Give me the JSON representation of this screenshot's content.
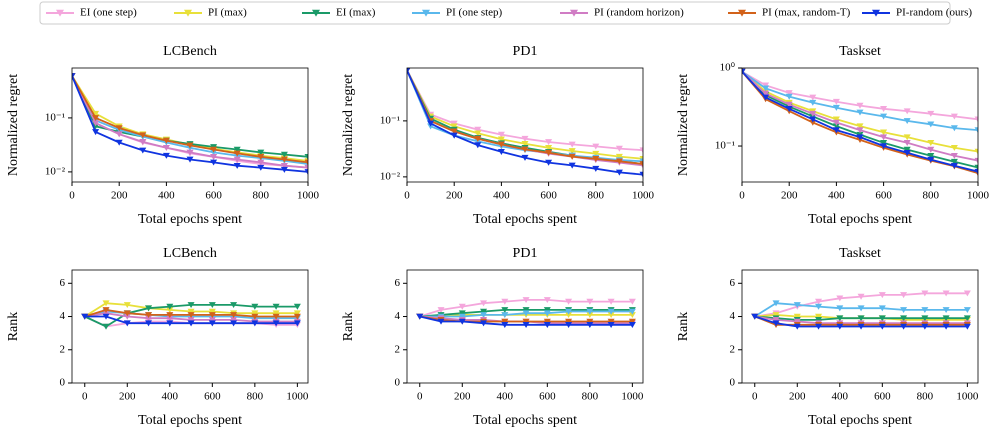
{
  "legend": [
    {
      "name": "EI (one step)",
      "color": "#f4a6dc"
    },
    {
      "name": "PI (max)",
      "color": "#e8e03a"
    },
    {
      "name": "EI (max)",
      "color": "#1a9a68"
    },
    {
      "name": "PI (one step)",
      "color": "#5ab8ec"
    },
    {
      "name": "PI (random horizon)",
      "color": "#d07cc4"
    },
    {
      "name": "PI (max, random-T)",
      "color": "#d2621a"
    },
    {
      "name": "PI-random (ours)",
      "color": "#1034e0"
    }
  ],
  "chart_data": [
    {
      "type": "line",
      "title": "LCBench",
      "xlabel": "Total epochs spent",
      "ylabel": "Normalized regret",
      "log_y": true,
      "x": [
        0,
        100,
        200,
        300,
        400,
        500,
        600,
        700,
        800,
        900,
        1000
      ],
      "xlim": [
        0,
        1000
      ],
      "xticks": [
        0,
        200,
        400,
        600,
        800,
        1000
      ],
      "ylim": [
        0.0065,
        0.84
      ],
      "yticks": [
        {
          "value": 0.01,
          "label": "10⁻²"
        },
        {
          "value": 0.1,
          "label": "10⁻¹"
        }
      ],
      "series": [
        {
          "values": [
            0.6,
            0.08,
            0.05,
            0.035,
            0.028,
            0.022,
            0.019,
            0.016,
            0.014,
            0.013,
            0.012
          ]
        },
        {
          "values": [
            0.6,
            0.12,
            0.07,
            0.05,
            0.04,
            0.032,
            0.027,
            0.023,
            0.02,
            0.018,
            0.016
          ]
        },
        {
          "values": [
            0.6,
            0.07,
            0.055,
            0.045,
            0.038,
            0.033,
            0.029,
            0.026,
            0.023,
            0.021,
            0.019
          ]
        },
        {
          "values": [
            0.6,
            0.09,
            0.06,
            0.045,
            0.035,
            0.028,
            0.023,
            0.02,
            0.018,
            0.016,
            0.014
          ]
        },
        {
          "values": [
            0.6,
            0.08,
            0.05,
            0.036,
            0.028,
            0.023,
            0.019,
            0.017,
            0.015,
            0.013,
            0.012
          ]
        },
        {
          "values": [
            0.6,
            0.1,
            0.065,
            0.048,
            0.038,
            0.031,
            0.026,
            0.022,
            0.019,
            0.017,
            0.015
          ]
        },
        {
          "values": [
            0.6,
            0.055,
            0.035,
            0.025,
            0.02,
            0.017,
            0.015,
            0.013,
            0.012,
            0.011,
            0.01
          ]
        }
      ]
    },
    {
      "type": "line",
      "title": "PD1",
      "xlabel": "Total epochs spent",
      "ylabel": "Normalized regret",
      "log_y": true,
      "x": [
        0,
        100,
        200,
        300,
        400,
        500,
        600,
        700,
        800,
        900,
        1000
      ],
      "xlim": [
        0,
        1000
      ],
      "xticks": [
        0,
        200,
        400,
        600,
        800,
        1000
      ],
      "ylim": [
        0.0081,
        0.88
      ],
      "yticks": [
        {
          "value": 0.01,
          "label": "10⁻²"
        },
        {
          "value": 0.1,
          "label": "10⁻¹"
        }
      ],
      "series": [
        {
          "values": [
            0.8,
            0.13,
            0.09,
            0.07,
            0.057,
            0.048,
            0.042,
            0.038,
            0.035,
            0.032,
            0.03
          ]
        },
        {
          "values": [
            0.8,
            0.12,
            0.08,
            0.06,
            0.047,
            0.039,
            0.033,
            0.029,
            0.026,
            0.023,
            0.021
          ]
        },
        {
          "values": [
            0.8,
            0.11,
            0.07,
            0.05,
            0.04,
            0.033,
            0.028,
            0.024,
            0.021,
            0.019,
            0.017
          ]
        },
        {
          "values": [
            0.8,
            0.08,
            0.055,
            0.043,
            0.035,
            0.03,
            0.027,
            0.024,
            0.022,
            0.02,
            0.019
          ]
        },
        {
          "values": [
            0.8,
            0.1,
            0.065,
            0.048,
            0.038,
            0.031,
            0.026,
            0.023,
            0.02,
            0.018,
            0.016
          ]
        },
        {
          "values": [
            0.8,
            0.1,
            0.065,
            0.048,
            0.038,
            0.031,
            0.027,
            0.023,
            0.021,
            0.019,
            0.017
          ]
        },
        {
          "values": [
            0.8,
            0.09,
            0.055,
            0.037,
            0.028,
            0.022,
            0.018,
            0.016,
            0.014,
            0.012,
            0.011
          ]
        }
      ]
    },
    {
      "type": "line",
      "title": "Taskset",
      "xlabel": "Total epochs spent",
      "ylabel": "Normalized regret",
      "log_y": true,
      "x": [
        0,
        100,
        200,
        300,
        400,
        500,
        600,
        700,
        800,
        900,
        1000
      ],
      "xlim": [
        0,
        1000
      ],
      "xticks": [
        0,
        200,
        400,
        600,
        800,
        1000
      ],
      "ylim": [
        0.0346,
        1.0
      ],
      "yticks": [
        {
          "value": 0.1,
          "label": "10⁻¹"
        },
        {
          "value": 1,
          "label": "10⁰"
        }
      ],
      "series": [
        {
          "values": [
            0.9,
            0.6,
            0.48,
            0.42,
            0.37,
            0.33,
            0.3,
            0.28,
            0.26,
            0.24,
            0.22
          ]
        },
        {
          "values": [
            0.9,
            0.5,
            0.36,
            0.28,
            0.22,
            0.18,
            0.15,
            0.13,
            0.11,
            0.095,
            0.085
          ]
        },
        {
          "values": [
            0.9,
            0.45,
            0.32,
            0.24,
            0.18,
            0.14,
            0.11,
            0.09,
            0.075,
            0.063,
            0.053
          ]
        },
        {
          "values": [
            0.9,
            0.55,
            0.43,
            0.36,
            0.31,
            0.27,
            0.24,
            0.21,
            0.19,
            0.17,
            0.16
          ]
        },
        {
          "values": [
            0.9,
            0.47,
            0.34,
            0.26,
            0.2,
            0.16,
            0.13,
            0.11,
            0.09,
            0.075,
            0.065
          ]
        },
        {
          "values": [
            0.9,
            0.4,
            0.28,
            0.2,
            0.15,
            0.12,
            0.095,
            0.078,
            0.065,
            0.055,
            0.045
          ]
        },
        {
          "values": [
            0.9,
            0.42,
            0.3,
            0.22,
            0.16,
            0.13,
            0.1,
            0.082,
            0.067,
            0.056,
            0.047
          ]
        }
      ]
    },
    {
      "type": "line",
      "title": "LCBench",
      "xlabel": "Total epochs spent",
      "ylabel": "Rank",
      "log_y": false,
      "x": [
        0,
        100,
        200,
        300,
        400,
        500,
        600,
        700,
        800,
        900,
        1000
      ],
      "xlim": [
        -60,
        1050
      ],
      "xticks": [
        0,
        200,
        400,
        600,
        800,
        1000
      ],
      "ylim": [
        0,
        6.8
      ],
      "yticks": [
        0,
        2,
        4,
        6
      ],
      "series": [
        {
          "values": [
            4,
            3.4,
            3.6,
            3.7,
            3.7,
            3.6,
            3.6,
            3.6,
            3.6,
            3.5,
            3.5
          ]
        },
        {
          "values": [
            4,
            4.8,
            4.7,
            4.5,
            4.4,
            4.3,
            4.3,
            4.2,
            4.2,
            4.2,
            4.2
          ]
        },
        {
          "values": [
            4,
            3.4,
            4.2,
            4.5,
            4.6,
            4.7,
            4.7,
            4.7,
            4.6,
            4.6,
            4.6
          ]
        },
        {
          "values": [
            4,
            4.3,
            4.2,
            4.1,
            4,
            4,
            4,
            4,
            3.9,
            3.9,
            3.9
          ]
        },
        {
          "values": [
            4,
            4.2,
            4,
            3.9,
            3.9,
            3.8,
            3.8,
            3.8,
            3.7,
            3.7,
            3.7
          ]
        },
        {
          "values": [
            4,
            4.4,
            4.2,
            4.1,
            4.1,
            4.1,
            4.1,
            4.1,
            4,
            4,
            4
          ]
        },
        {
          "values": [
            4,
            4,
            3.6,
            3.6,
            3.6,
            3.6,
            3.6,
            3.6,
            3.6,
            3.6,
            3.6
          ]
        }
      ]
    },
    {
      "type": "line",
      "title": "PD1",
      "xlabel": "Total epochs spent",
      "ylabel": "Rank",
      "log_y": false,
      "x": [
        0,
        100,
        200,
        300,
        400,
        500,
        600,
        700,
        800,
        900,
        1000
      ],
      "xlim": [
        -60,
        1050
      ],
      "xticks": [
        0,
        200,
        400,
        600,
        800,
        1000
      ],
      "ylim": [
        0,
        6.8
      ],
      "yticks": [
        0,
        2,
        4,
        6
      ],
      "series": [
        {
          "values": [
            4,
            4.4,
            4.6,
            4.8,
            4.9,
            5,
            5,
            4.9,
            4.9,
            4.9,
            4.9
          ]
        },
        {
          "values": [
            4,
            4,
            4.1,
            4.1,
            4.1,
            4.1,
            4.1,
            4.1,
            4.1,
            4.1,
            4.1
          ]
        },
        {
          "values": [
            4,
            4.1,
            4.2,
            4.3,
            4.4,
            4.4,
            4.4,
            4.4,
            4.4,
            4.4,
            4.4
          ]
        },
        {
          "values": [
            4,
            4,
            4,
            4.1,
            4.1,
            4.2,
            4.2,
            4.3,
            4.3,
            4.3,
            4.3
          ]
        },
        {
          "values": [
            4,
            3.9,
            3.8,
            3.8,
            3.7,
            3.7,
            3.6,
            3.6,
            3.6,
            3.6,
            3.6
          ]
        },
        {
          "values": [
            4,
            3.8,
            3.7,
            3.7,
            3.7,
            3.7,
            3.7,
            3.7,
            3.7,
            3.7,
            3.7
          ]
        },
        {
          "values": [
            4,
            3.7,
            3.7,
            3.6,
            3.5,
            3.5,
            3.5,
            3.5,
            3.5,
            3.5,
            3.5
          ]
        }
      ]
    },
    {
      "type": "line",
      "title": "Taskset",
      "xlabel": "Total epochs spent",
      "ylabel": "Rank",
      "log_y": false,
      "x": [
        0,
        100,
        200,
        300,
        400,
        500,
        600,
        700,
        800,
        900,
        1000
      ],
      "xlim": [
        -60,
        1050
      ],
      "xticks": [
        0,
        200,
        400,
        600,
        800,
        1000
      ],
      "ylim": [
        0,
        6.8
      ],
      "yticks": [
        0,
        2,
        4,
        6
      ],
      "series": [
        {
          "values": [
            4,
            4.2,
            4.6,
            4.9,
            5.1,
            5.2,
            5.3,
            5.3,
            5.4,
            5.4,
            5.4
          ]
        },
        {
          "values": [
            4,
            4.1,
            4,
            4,
            3.9,
            3.9,
            3.9,
            3.8,
            3.8,
            3.8,
            3.8
          ]
        },
        {
          "values": [
            4,
            3.9,
            3.8,
            3.8,
            3.9,
            3.9,
            3.9,
            3.9,
            3.9,
            3.9,
            3.9
          ]
        },
        {
          "values": [
            4,
            4.8,
            4.7,
            4.6,
            4.5,
            4.5,
            4.5,
            4.4,
            4.4,
            4.4,
            4.4
          ]
        },
        {
          "values": [
            4,
            3.8,
            3.7,
            3.6,
            3.6,
            3.6,
            3.6,
            3.6,
            3.6,
            3.6,
            3.6
          ]
        },
        {
          "values": [
            4,
            3.5,
            3.5,
            3.5,
            3.5,
            3.5,
            3.5,
            3.5,
            3.5,
            3.5,
            3.5
          ]
        },
        {
          "values": [
            4,
            3.6,
            3.4,
            3.4,
            3.4,
            3.4,
            3.4,
            3.4,
            3.4,
            3.4,
            3.4
          ]
        }
      ]
    }
  ]
}
